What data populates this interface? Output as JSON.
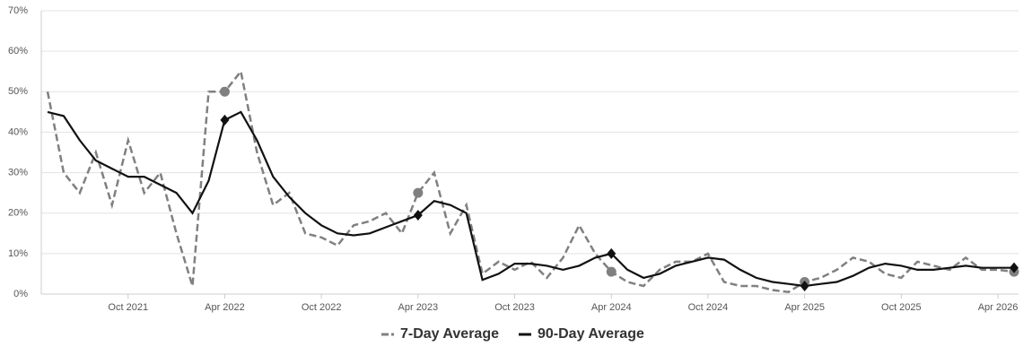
{
  "chart_data": {
    "type": "line",
    "categories": [
      "May 2021",
      "Jun 2021",
      "Jul 2021",
      "Aug 2021",
      "Sep 2021",
      "Oct 2021",
      "Nov 2021",
      "Dec 2021",
      "Jan 2022",
      "Feb 2022",
      "Mar 2022",
      "Apr 2022",
      "May 2022",
      "Jun 2022",
      "Jul 2022",
      "Aug 2022",
      "Sep 2022",
      "Oct 2022",
      "Nov 2022",
      "Dec 2022",
      "Jan 2023",
      "Feb 2023",
      "Mar 2023",
      "Apr 2023",
      "May 2023",
      "Jun 2023",
      "Jul 2023",
      "Aug 2023",
      "Sep 2023",
      "Oct 2023",
      "Nov 2023",
      "Dec 2023",
      "Jan 2024",
      "Feb 2024",
      "Mar 2024",
      "Apr 2024",
      "May 2024",
      "Jun 2024",
      "Jul 2024",
      "Aug 2024",
      "Sep 2024",
      "Oct 2024",
      "Nov 2024",
      "Dec 2024",
      "Jan 2025",
      "Feb 2025",
      "Mar 2025",
      "Apr 2025",
      "May 2025",
      "Jun 2025",
      "Jul 2025",
      "Aug 2025",
      "Sep 2025",
      "Oct 2025",
      "Nov 2025",
      "Dec 2025",
      "Jan 2026",
      "Feb 2026",
      "Mar 2026",
      "Apr 2026",
      "May 2026"
    ],
    "series": [
      {
        "name": "7-Day Average",
        "color": "#808080",
        "dash": true,
        "marker": "circle",
        "markers": [
          11,
          23,
          35,
          47,
          60
        ],
        "values": [
          50,
          30,
          25,
          35,
          22,
          38,
          25,
          30,
          15,
          2,
          50,
          50,
          55,
          35,
          22,
          25,
          15,
          14,
          12,
          17,
          18,
          20,
          15,
          25,
          30,
          15,
          22,
          5,
          8,
          6,
          8,
          4,
          9,
          17,
          10,
          5.5,
          3,
          2,
          6,
          8,
          8,
          10,
          3,
          2,
          2,
          1,
          0.5,
          3,
          4,
          6,
          9,
          8,
          5,
          4,
          8,
          7,
          6,
          9,
          6,
          6,
          5.5
        ]
      },
      {
        "name": "90-Day Average",
        "color": "#111111",
        "dash": false,
        "marker": "diamond",
        "markers": [
          11,
          23,
          35,
          47,
          60
        ],
        "values": [
          45,
          44,
          38,
          33,
          31,
          29,
          29,
          27,
          25,
          20,
          28,
          43,
          45,
          38,
          29,
          24,
          20,
          17,
          15,
          14.5,
          15,
          16.5,
          18,
          19.5,
          23,
          22,
          20,
          3.5,
          5,
          7.5,
          7.5,
          7,
          6,
          7,
          9,
          10,
          6,
          4,
          5,
          7,
          8,
          9,
          8.5,
          6,
          4,
          3,
          2.5,
          2,
          2.5,
          3,
          4.5,
          6.5,
          7.5,
          7,
          6,
          6,
          6.5,
          7,
          6.5,
          6.5,
          6.5
        ]
      }
    ],
    "xticks": [
      "Oct 2021",
      "Apr 2022",
      "Oct 2022",
      "Apr 2023",
      "Oct 2023",
      "Apr 2024",
      "Oct 2024",
      "Apr 2025",
      "Oct 2025",
      "Apr 2026"
    ],
    "ylim": [
      0,
      70
    ],
    "yticks": [
      {
        "value": 0,
        "label": "0%"
      },
      {
        "value": 10,
        "label": "10%"
      },
      {
        "value": 20,
        "label": "20%"
      },
      {
        "value": 30,
        "label": "30%"
      },
      {
        "value": 40,
        "label": "40%"
      },
      {
        "value": 50,
        "label": "50%"
      },
      {
        "value": 60,
        "label": "60%"
      },
      {
        "value": 70,
        "label": "70%"
      }
    ],
    "grid": true,
    "legend": "bottom"
  }
}
